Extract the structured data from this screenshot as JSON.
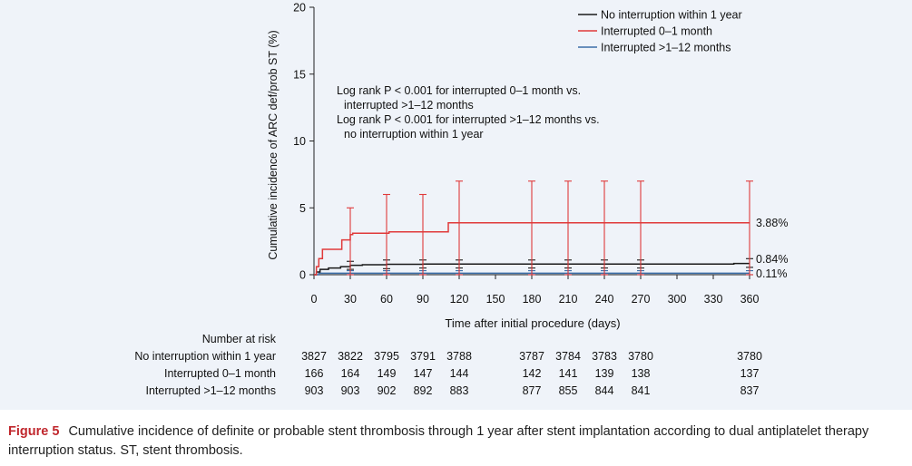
{
  "chart_data": {
    "type": "line",
    "step": true,
    "ylabel": "Cumulative incidence of ARC def/prob ST (%)",
    "xlabel": "Time after initial procedure (days)",
    "xlim": [
      0,
      360
    ],
    "ylim": [
      0,
      20
    ],
    "xticks": [
      0,
      30,
      60,
      90,
      120,
      150,
      180,
      210,
      240,
      270,
      300,
      330,
      360
    ],
    "yticks": [
      0,
      5,
      10,
      15,
      20
    ],
    "legend_position": "top-right",
    "annotation_lines": [
      "Log rank P < 0.001 for interrupted 0–1 month vs.",
      "interrupted >1–12 months",
      "Log rank P < 0.001 for interrupted >1–12  months vs.",
      "no interruption within 1 year"
    ],
    "series": [
      {
        "name": "No interruption within 1 year",
        "color": "#1a1a1a",
        "points": [
          [
            0,
            0
          ],
          [
            2,
            0.2
          ],
          [
            5,
            0.4
          ],
          [
            12,
            0.5
          ],
          [
            22,
            0.6
          ],
          [
            30,
            0.7
          ],
          [
            40,
            0.75
          ],
          [
            60,
            0.78
          ],
          [
            90,
            0.8
          ],
          [
            120,
            0.8
          ],
          [
            180,
            0.8
          ],
          [
            240,
            0.8
          ],
          [
            270,
            0.8
          ],
          [
            345,
            0.8
          ],
          [
            347,
            0.84
          ],
          [
            360,
            0.84
          ]
        ],
        "ci": [
          [
            30,
            0.4,
            1.0
          ],
          [
            60,
            0.45,
            1.1
          ],
          [
            90,
            0.5,
            1.1
          ],
          [
            120,
            0.5,
            1.1
          ],
          [
            180,
            0.5,
            1.1
          ],
          [
            210,
            0.5,
            1.1
          ],
          [
            240,
            0.5,
            1.1
          ],
          [
            270,
            0.5,
            1.1
          ],
          [
            360,
            0.55,
            1.2
          ]
        ],
        "end_label": "0.84%"
      },
      {
        "name": "Interrupted 0–1 month",
        "color": "#e03a3a",
        "points": [
          [
            0,
            0
          ],
          [
            2,
            0.6
          ],
          [
            4,
            1.2
          ],
          [
            7,
            1.9
          ],
          [
            22,
            1.9
          ],
          [
            23,
            2.6
          ],
          [
            29,
            2.6
          ],
          [
            30,
            3.0
          ],
          [
            32,
            3.1
          ],
          [
            60,
            3.1
          ],
          [
            62,
            3.2
          ],
          [
            110,
            3.2
          ],
          [
            111,
            3.88
          ],
          [
            360,
            3.88
          ]
        ],
        "ci": [
          [
            30,
            0,
            5
          ],
          [
            60,
            0,
            6
          ],
          [
            90,
            0,
            6
          ],
          [
            120,
            0,
            7
          ],
          [
            180,
            0,
            7
          ],
          [
            210,
            0,
            7
          ],
          [
            240,
            0,
            7
          ],
          [
            270,
            0,
            7
          ],
          [
            360,
            0,
            7
          ]
        ],
        "end_label": "3.88%"
      },
      {
        "name": "Interrupted >1–12 months",
        "color": "#3b6ea8",
        "points": [
          [
            0,
            0
          ],
          [
            4,
            0.11
          ],
          [
            360,
            0.11
          ]
        ],
        "ci": [
          [
            30,
            0,
            0.3
          ],
          [
            60,
            0,
            0.3
          ],
          [
            90,
            0,
            0.3
          ],
          [
            120,
            0,
            0.3
          ],
          [
            180,
            0,
            0.3
          ],
          [
            210,
            0,
            0.3
          ],
          [
            240,
            0,
            0.3
          ],
          [
            270,
            0,
            0.3
          ],
          [
            360,
            0,
            0.3
          ]
        ],
        "end_label": "0.11%"
      }
    ],
    "risk_table": {
      "heading": "Number at risk",
      "timepoints": [
        0,
        30,
        60,
        90,
        120,
        180,
        210,
        240,
        270,
        360
      ],
      "rows": [
        {
          "label": "No interruption within 1 year",
          "values": [
            "3827",
            "3822",
            "3795",
            "3791",
            "3788",
            "3787",
            "3784",
            "3783",
            "3780",
            "3780"
          ]
        },
        {
          "label": "Interrupted 0–1 month",
          "values": [
            "166",
            "164",
            "149",
            "147",
            "144",
            "142",
            "141",
            "139",
            "138",
            "137"
          ]
        },
        {
          "label": "Interrupted >1–12 months",
          "values": [
            "903",
            "903",
            "902",
            "892",
            "883",
            "877",
            "855",
            "844",
            "841",
            "837"
          ]
        }
      ]
    }
  },
  "caption": {
    "label": "Figure 5",
    "text": "Cumulative incidence of definite or probable stent thrombosis through 1 year after stent implantation according to dual antiplatelet therapy interruption status. ST, stent thrombosis."
  }
}
